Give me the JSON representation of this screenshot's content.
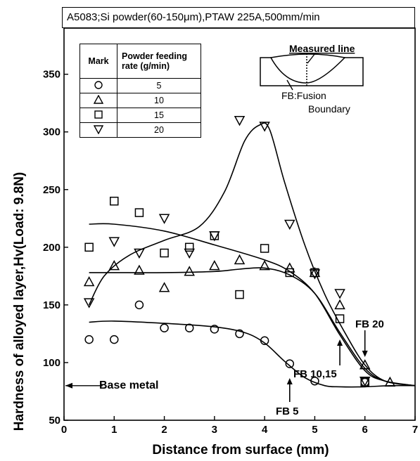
{
  "header": {
    "title": "A5083;Si powder(60-150μm),PTAW 225A,500mm/min"
  },
  "legend": {
    "col_mark": "Mark",
    "col_rate": "Powder feeding rate (g/min)",
    "rows": [
      {
        "marker": "circle",
        "rate": "5"
      },
      {
        "marker": "triangle-up",
        "rate": "10"
      },
      {
        "marker": "square",
        "rate": "15"
      },
      {
        "marker": "triangle-down",
        "rate": "20"
      }
    ]
  },
  "inset": {
    "measured_line": "Measured line",
    "fb_line1": "FB:Fusion",
    "fb_line2": "Boundary"
  },
  "annotations": {
    "base_metal": "Base metal",
    "fb5": "FB 5",
    "fb1015": "FB 10,15",
    "fb20": "FB 20"
  },
  "chart_data": {
    "type": "scatter",
    "xlabel": "Distance from surface (mm)",
    "ylabel": "Hardness of alloyed layer,Hv(Load: 9.8N)",
    "xlim": [
      0,
      7
    ],
    "ylim": [
      50,
      390
    ],
    "xticks": [
      0,
      1,
      2,
      3,
      4,
      5,
      6,
      7
    ],
    "yticks": [
      50,
      100,
      150,
      200,
      250,
      300,
      350
    ],
    "grid": false,
    "base_metal_hv": 80,
    "series": [
      {
        "marker": "circle",
        "rate": "5",
        "points": [
          [
            0.5,
            120
          ],
          [
            1,
            120
          ],
          [
            1.5,
            150
          ],
          [
            2,
            130
          ],
          [
            2.5,
            130
          ],
          [
            3,
            129
          ],
          [
            3.5,
            125
          ],
          [
            4,
            119
          ],
          [
            4.5,
            99
          ],
          [
            5,
            84
          ],
          [
            6,
            83
          ]
        ],
        "curve": [
          [
            0.5,
            135
          ],
          [
            1,
            136
          ],
          [
            2,
            134
          ],
          [
            3,
            131
          ],
          [
            3.6,
            126
          ],
          [
            4,
            117
          ],
          [
            4.4,
            101
          ],
          [
            4.8,
            87
          ],
          [
            5.2,
            80
          ],
          [
            5.5,
            79
          ],
          [
            6,
            79
          ],
          [
            6.5,
            80
          ],
          [
            7,
            80
          ]
        ]
      },
      {
        "marker": "triangle-up",
        "rate": "10",
        "points": [
          [
            0.5,
            170
          ],
          [
            1,
            184
          ],
          [
            1.5,
            180
          ],
          [
            2,
            165
          ],
          [
            2.5,
            179
          ],
          [
            3,
            184
          ],
          [
            3.5,
            189
          ],
          [
            4,
            184
          ],
          [
            4.5,
            182
          ],
          [
            5,
            178
          ],
          [
            5.5,
            150
          ],
          [
            6,
            98
          ],
          [
            6.5,
            83
          ]
        ],
        "curve": [
          [
            0.5,
            178
          ],
          [
            1,
            178
          ],
          [
            2,
            178
          ],
          [
            3,
            179
          ],
          [
            3.5,
            181
          ],
          [
            4,
            182
          ],
          [
            4.5,
            176
          ],
          [
            5,
            160
          ],
          [
            5.5,
            126
          ],
          [
            6,
            95
          ],
          [
            6.4,
            84
          ],
          [
            7,
            80
          ]
        ]
      },
      {
        "marker": "square",
        "rate": "15",
        "points": [
          [
            0.5,
            200
          ],
          [
            1,
            240
          ],
          [
            1.5,
            230
          ],
          [
            2,
            195
          ],
          [
            2.5,
            200
          ],
          [
            3,
            210
          ],
          [
            3.5,
            159
          ],
          [
            4,
            199
          ],
          [
            4.5,
            178
          ],
          [
            5,
            178
          ],
          [
            5.5,
            138
          ],
          [
            6,
            83
          ]
        ],
        "curve": [
          [
            0.5,
            220
          ],
          [
            1,
            220
          ],
          [
            2,
            214
          ],
          [
            3,
            202
          ],
          [
            4,
            189
          ],
          [
            4.5,
            179
          ],
          [
            5,
            160
          ],
          [
            5.5,
            124
          ],
          [
            6,
            93
          ],
          [
            6.4,
            84
          ],
          [
            7,
            80
          ]
        ]
      },
      {
        "marker": "triangle-down",
        "rate": "20",
        "points": [
          [
            0.5,
            152
          ],
          [
            1,
            205
          ],
          [
            1.5,
            195
          ],
          [
            2,
            225
          ],
          [
            2.5,
            195
          ],
          [
            3,
            210
          ],
          [
            3.5,
            310
          ],
          [
            4,
            305
          ],
          [
            4.5,
            220
          ],
          [
            5,
            177
          ],
          [
            5.5,
            160
          ],
          [
            6,
            84
          ]
        ],
        "curve": [
          [
            0.5,
            150
          ],
          [
            0.8,
            175
          ],
          [
            1.3,
            193
          ],
          [
            2,
            206
          ],
          [
            2.7,
            218
          ],
          [
            3.2,
            248
          ],
          [
            3.6,
            292
          ],
          [
            3.9,
            306
          ],
          [
            4.1,
            302
          ],
          [
            4.4,
            256
          ],
          [
            4.8,
            202
          ],
          [
            5.2,
            159
          ],
          [
            5.6,
            126
          ],
          [
            6,
            98
          ],
          [
            6.4,
            84
          ],
          [
            7,
            80
          ]
        ]
      }
    ]
  }
}
